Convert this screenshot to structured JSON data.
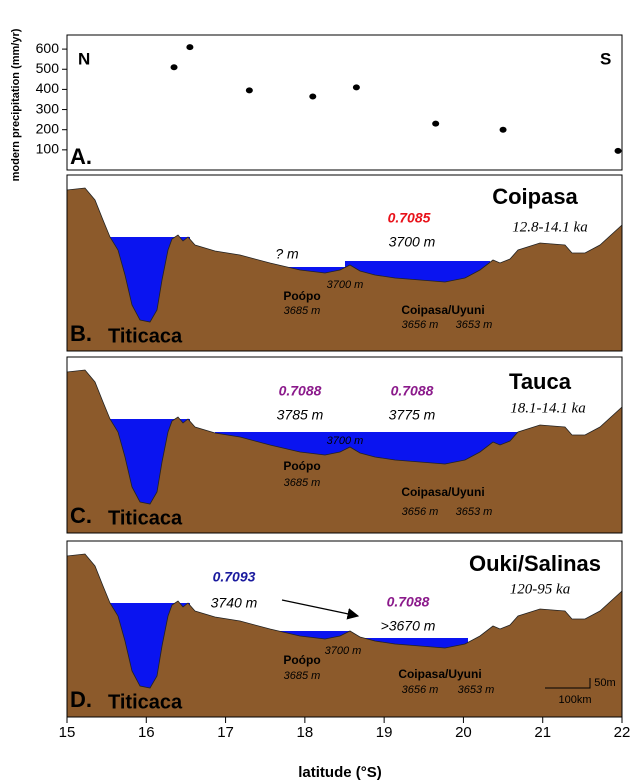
{
  "chart_data": [
    {
      "type": "scatter",
      "y_label": "modern precipitation (mm/yr)",
      "panel_label": "A.",
      "north_label": "N",
      "south_label": "S",
      "x": [
        16.35,
        16.55,
        17.3,
        18.1,
        18.65,
        19.65,
        20.5,
        21.95
      ],
      "y": [
        510,
        610,
        395,
        365,
        410,
        230,
        200,
        95
      ],
      "color": "#000000",
      "xlim": [
        15,
        22
      ],
      "ylim": [
        0,
        670
      ],
      "yticks": [
        100,
        200,
        300,
        400,
        500,
        600
      ]
    },
    {
      "type": "profile",
      "panel_label": "B.",
      "basin_label": "Titicaca",
      "title": "Coipasa",
      "age": "12.8-14.1 ka",
      "isotope_ratios": [
        0.7085
      ],
      "labels": [
        "3700 m",
        "? m",
        "3700 m",
        "Poópo",
        "3685 m",
        "Coipasa/Uyuni",
        "3656 m",
        "3653 m"
      ]
    },
    {
      "type": "profile",
      "panel_label": "C.",
      "basin_label": "Titicaca",
      "title": "Tauca",
      "age": "18.1-14.1 ka",
      "isotope_ratios": [
        0.7088,
        0.7088
      ],
      "labels": [
        "3785 m",
        "3775 m",
        "3700 m",
        "Poópo",
        "3685 m",
        "Coipasa/Uyuni",
        "3656 m",
        "3653 m"
      ]
    },
    {
      "type": "profile",
      "panel_label": "D.",
      "basin_label": "Titicaca",
      "title": "Ouki/Salinas",
      "age": "120-95 ka",
      "isotope_ratios": [
        0.7093,
        0.7088
      ],
      "labels": [
        "3740 m",
        ">3670 m",
        "3700 m",
        "Poópo",
        "3685 m",
        "Coipasa/Uyuni",
        "3656 m",
        "3653 m",
        "50m",
        "100km"
      ],
      "x_label": "latitude (°S)",
      "xlim": [
        15,
        22
      ],
      "xticks": [
        15,
        16,
        17,
        18,
        19,
        20,
        21,
        22
      ]
    }
  ]
}
